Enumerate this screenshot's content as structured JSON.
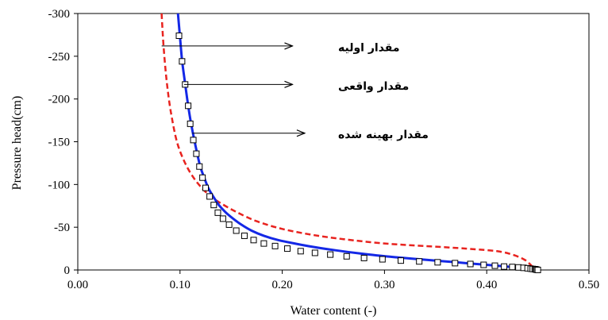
{
  "chart_data": {
    "type": "line",
    "title": "",
    "xlabel": "Water content (-)",
    "ylabel": "Pressure head(cm)",
    "xlim": [
      0.0,
      0.5
    ],
    "ylim": [
      0,
      -300
    ],
    "x_ticks": [
      "0.00",
      "0.10",
      "0.20",
      "0.30",
      "0.40",
      "0.50"
    ],
    "y_ticks": [
      "0",
      "-50",
      "-100",
      "-150",
      "-200",
      "-250",
      "-300"
    ],
    "grid": false,
    "series": [
      {
        "style": "dashed",
        "color": "#e8231f",
        "x": [
          0.082,
          0.084,
          0.087,
          0.091,
          0.097,
          0.105,
          0.115,
          0.128,
          0.14,
          0.155,
          0.175,
          0.2,
          0.23,
          0.26,
          0.3,
          0.34,
          0.38,
          0.41,
          0.425,
          0.437,
          0.443,
          0.446,
          0.449
        ],
        "y": [
          -300,
          -260,
          -220,
          -185,
          -150,
          -125,
          -105,
          -88,
          -78,
          -68,
          -57,
          -48,
          -41,
          -36,
          -31,
          -28,
          -25,
          -22,
          -18,
          -12,
          -6,
          -2,
          0
        ]
      },
      {
        "style": "solid",
        "color": "#1428e6",
        "x": [
          0.098,
          0.1,
          0.102,
          0.105,
          0.108,
          0.111,
          0.114,
          0.117,
          0.12,
          0.124,
          0.128,
          0.133,
          0.138,
          0.145,
          0.152,
          0.16,
          0.17,
          0.182,
          0.196,
          0.212,
          0.23,
          0.252,
          0.278,
          0.31,
          0.34,
          0.37,
          0.4,
          0.42,
          0.434,
          0.442,
          0.446,
          0.449
        ],
        "y": [
          -300,
          -272,
          -245,
          -218,
          -192,
          -170,
          -152,
          -135,
          -120,
          -107,
          -95,
          -85,
          -76,
          -67,
          -60,
          -53,
          -46,
          -40,
          -35,
          -31,
          -27,
          -23,
          -19,
          -15,
          -12,
          -9,
          -6,
          -4,
          -2,
          -1,
          -0.5,
          0
        ]
      },
      {
        "style": "markers",
        "marker": "open-square",
        "color": "#000000",
        "x": [
          0.099,
          0.102,
          0.105,
          0.108,
          0.11,
          0.113,
          0.116,
          0.119,
          0.122,
          0.125,
          0.129,
          0.133,
          0.137,
          0.142,
          0.148,
          0.155,
          0.163,
          0.172,
          0.182,
          0.193,
          0.205,
          0.218,
          0.232,
          0.247,
          0.263,
          0.28,
          0.298,
          0.316,
          0.334,
          0.352,
          0.369,
          0.384,
          0.397,
          0.408,
          0.417,
          0.425,
          0.431,
          0.436,
          0.44,
          0.443,
          0.445,
          0.447,
          0.448,
          0.449,
          0.45
        ],
        "y": [
          -274,
          -244,
          -217,
          -192,
          -171,
          -152,
          -136,
          -121,
          -108,
          -96,
          -86,
          -76,
          -67,
          -60,
          -53,
          -46,
          -40,
          -35,
          -31,
          -28,
          -25,
          -22,
          -20,
          -18,
          -16,
          -14,
          -12.5,
          -11,
          -10,
          -9,
          -8,
          -7,
          -6,
          -5,
          -4,
          -3.5,
          -3,
          -2.5,
          -2,
          -1.5,
          -1.2,
          -0.9,
          -0.6,
          -0.3,
          0
        ]
      }
    ],
    "annotations": [
      {
        "text": "مقدار اولیه",
        "x": 0.082,
        "y": -262,
        "arrow_end_x": 0.21
      },
      {
        "text": "مقدار واقعی",
        "x": 0.104,
        "y": -217,
        "arrow_end_x": 0.21
      },
      {
        "text": "مقدار بهینه شده",
        "x": 0.112,
        "y": -160,
        "arrow_end_x": 0.222
      }
    ]
  }
}
